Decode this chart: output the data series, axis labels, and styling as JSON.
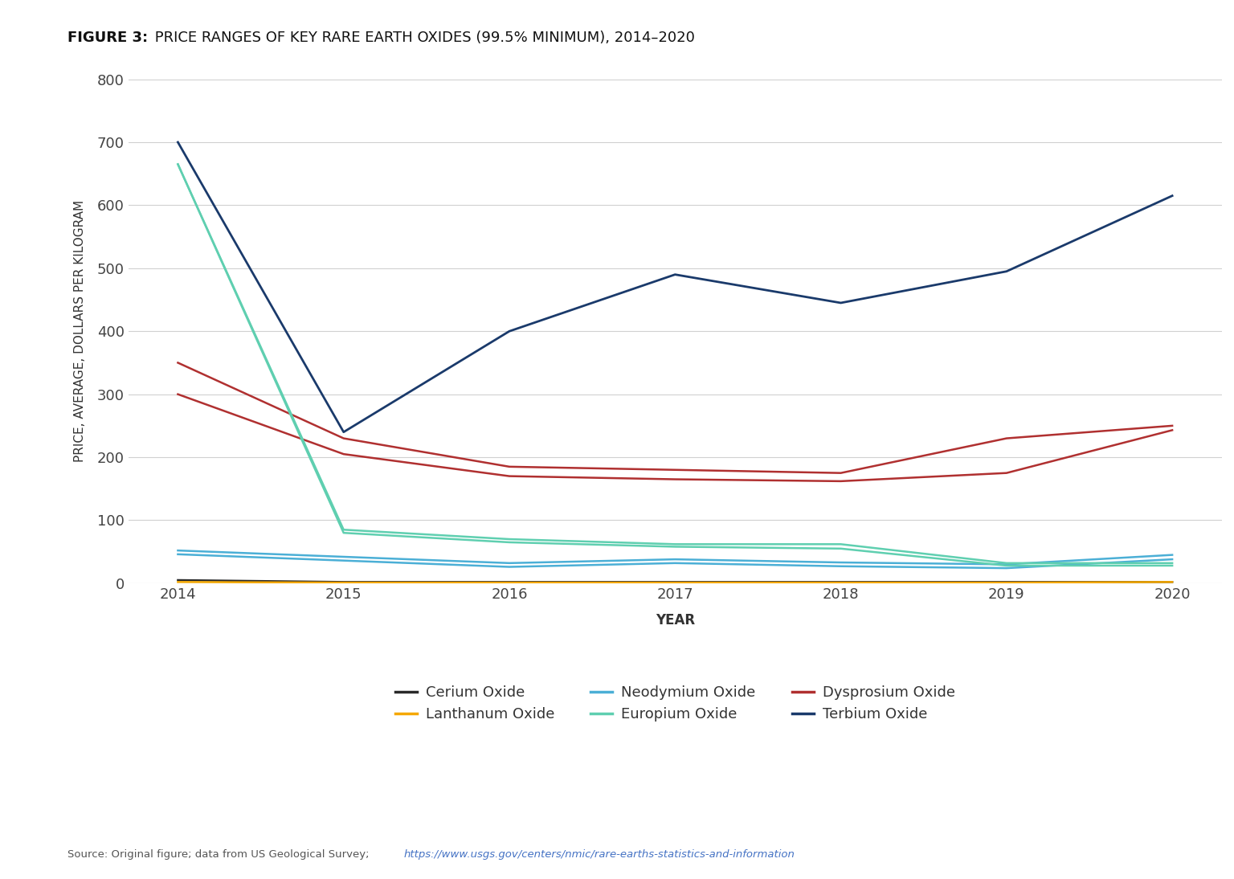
{
  "title_bold": "FIGURE 3:",
  "title_rest": " PRICE RANGES OF KEY RARE EARTH OXIDES (99.5% MINIMUM), 2014–2020",
  "years": [
    2014,
    2015,
    2016,
    2017,
    2018,
    2019,
    2020
  ],
  "terbium_oxide": [
    700,
    240,
    400,
    490,
    445,
    495,
    615
  ],
  "cerium_oxide": [
    5,
    2,
    2,
    2,
    2,
    2,
    2
  ],
  "europium_oxide_high": [
    665,
    85,
    70,
    62,
    62,
    32,
    32
  ],
  "europium_oxide_low": [
    665,
    80,
    65,
    58,
    55,
    28,
    28
  ],
  "lanthanum_oxide": [
    2,
    1,
    1,
    1,
    1,
    1,
    2
  ],
  "dysprosium_high": [
    350,
    230,
    185,
    180,
    175,
    230,
    250
  ],
  "dysprosium_low": [
    300,
    205,
    170,
    165,
    162,
    175,
    243
  ],
  "neodymium_high": [
    52,
    42,
    32,
    38,
    33,
    30,
    45
  ],
  "neodymium_low": [
    46,
    36,
    26,
    32,
    27,
    24,
    38
  ],
  "terbium_color": "#1a3a6b",
  "cerium_color": "#2a2a2a",
  "europium_color": "#5fcfb0",
  "lanthanum_color": "#f5a800",
  "dysprosium_color": "#b03030",
  "neodymium_color": "#4bafd6",
  "ylabel": "PRICE, AVERAGE, DOLLARS PER KILOGRAM",
  "xlabel": "YEAR",
  "ylim": [
    0,
    800
  ],
  "yticks": [
    0,
    100,
    200,
    300,
    400,
    500,
    600,
    700,
    800
  ],
  "source_text": "Source: Original figure; data from US Geological Survey; ",
  "source_url": "https://www.usgs.gov/centers/nmic/rare-earths-statistics-and-information",
  "background_color": "#ffffff",
  "grid_color": "#d0d0d0"
}
